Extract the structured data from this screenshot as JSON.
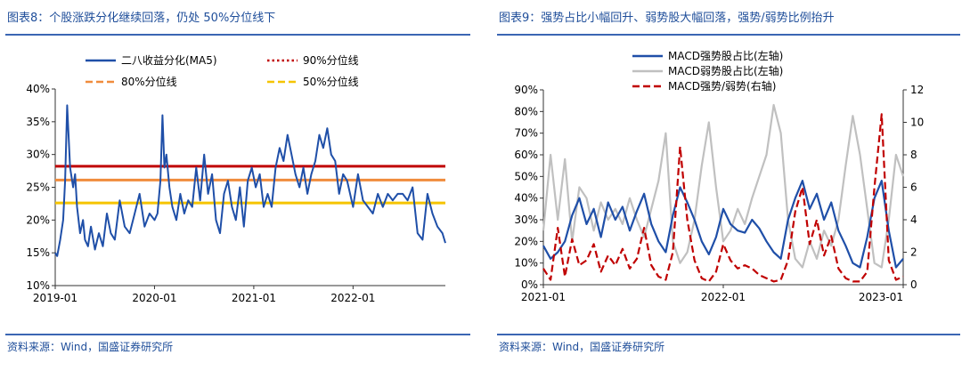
{
  "left": {
    "title": "图表8：个股涨跌分化继续回落，仍处 50%分位线下",
    "source": "资料来源：Wind，国盛证券研究所",
    "chart_data": {
      "type": "line",
      "title": "图表8：个股涨跌分化继续回落，仍处 50%分位线下",
      "yunit": "%",
      "ylim": [
        10,
        40
      ],
      "yticks": [
        "10%",
        "15%",
        "20%",
        "25%",
        "30%",
        "35%",
        "40%"
      ],
      "xlim": [
        2019.0,
        2022.93
      ],
      "xticks": [
        "2019-01",
        "2020-01",
        "2021-01",
        "2022-01"
      ],
      "legend_position": "top",
      "series": [
        {
          "name": "二八收益分化(MA5)",
          "color": "#1f4fa8",
          "style": "solid",
          "x": [
            2019.0,
            2019.02,
            2019.05,
            2019.08,
            2019.1,
            2019.12,
            2019.15,
            2019.18,
            2019.2,
            2019.22,
            2019.25,
            2019.28,
            2019.3,
            2019.33,
            2019.36,
            2019.4,
            2019.44,
            2019.48,
            2019.52,
            2019.56,
            2019.6,
            2019.65,
            2019.7,
            2019.75,
            2019.8,
            2019.85,
            2019.9,
            2019.95,
            2020.0,
            2020.03,
            2020.06,
            2020.08,
            2020.1,
            2020.12,
            2020.15,
            2020.18,
            2020.22,
            2020.26,
            2020.3,
            2020.34,
            2020.38,
            2020.42,
            2020.46,
            2020.5,
            2020.54,
            2020.58,
            2020.62,
            2020.66,
            2020.7,
            2020.74,
            2020.78,
            2020.82,
            2020.86,
            2020.9,
            2020.94,
            2020.98,
            2021.02,
            2021.06,
            2021.1,
            2021.14,
            2021.18,
            2021.22,
            2021.26,
            2021.3,
            2021.34,
            2021.38,
            2021.42,
            2021.46,
            2021.5,
            2021.54,
            2021.58,
            2021.62,
            2021.66,
            2021.7,
            2021.74,
            2021.78,
            2021.82,
            2021.86,
            2021.9,
            2021.94,
            2022.0,
            2022.05,
            2022.1,
            2022.15,
            2022.2,
            2022.25,
            2022.3,
            2022.35,
            2022.4,
            2022.45,
            2022.5,
            2022.55,
            2022.6,
            2022.65,
            2022.7,
            2022.75,
            2022.8,
            2022.85,
            2022.9,
            2022.93
          ],
          "y": [
            15,
            14.5,
            17,
            20,
            26,
            37.5,
            28,
            25,
            27,
            22,
            18,
            20,
            17,
            16,
            19,
            15.5,
            18,
            16,
            21,
            18,
            17,
            23,
            19,
            18,
            21,
            24,
            19,
            21,
            20,
            21,
            26,
            36,
            28,
            30,
            25,
            22,
            20,
            24,
            21,
            23,
            22,
            28,
            23,
            30,
            24,
            27,
            20,
            18,
            24,
            26,
            22,
            20,
            25,
            19,
            26,
            28,
            25,
            27,
            22,
            24,
            22,
            28,
            31,
            29,
            33,
            30,
            27,
            25,
            28,
            24,
            27,
            29,
            33,
            31,
            34,
            30,
            29,
            24,
            27,
            26,
            22,
            27,
            23,
            22,
            21,
            24,
            22,
            24,
            23,
            24,
            24,
            23,
            25,
            18,
            17,
            24,
            21,
            19,
            18,
            16.5
          ]
        },
        {
          "name": "90%分位线",
          "color": "#c00000",
          "style": "dotted",
          "y_const": 28.2
        },
        {
          "name": "80%分位线",
          "color": "#f08c3c",
          "style": "dashed",
          "y_const": 26.1
        },
        {
          "name": "50%分位线",
          "color": "#f5c400",
          "style": "dashed",
          "y_const": 22.6
        }
      ]
    }
  },
  "right": {
    "title": "图表9：强势占比小幅回升、弱势股大幅回落，强势/弱势比例抬升",
    "source": "资料来源：Wind，国盛证券研究所",
    "chart_data": {
      "type": "line",
      "title": "图表9：强势占比小幅回升、弱势股大幅回落，强势/弱势比例抬升",
      "yunit": "%",
      "ylim": [
        0,
        90
      ],
      "yticks": [
        "0%",
        "10%",
        "20%",
        "30%",
        "40%",
        "50%",
        "60%",
        "70%",
        "80%",
        "90%"
      ],
      "y2lim": [
        0,
        12
      ],
      "y2ticks": [
        "0",
        "2",
        "4",
        "6",
        "8",
        "10",
        "12"
      ],
      "xlim": [
        2021.0,
        2023.0
      ],
      "xticks": [
        "2021-01",
        "2022-01",
        "2023-01"
      ],
      "legend_position": "top",
      "series": [
        {
          "name": "MACD强势股占比(左轴)",
          "color": "#1f4fa8",
          "style": "solid",
          "axis": "left",
          "x": [
            2021.0,
            2021.04,
            2021.08,
            2021.12,
            2021.16,
            2021.2,
            2021.24,
            2021.28,
            2021.32,
            2021.36,
            2021.4,
            2021.44,
            2021.48,
            2021.52,
            2021.56,
            2021.6,
            2021.64,
            2021.68,
            2021.72,
            2021.76,
            2021.8,
            2021.84,
            2021.88,
            2021.92,
            2021.96,
            2022.0,
            2022.04,
            2022.08,
            2022.12,
            2022.16,
            2022.2,
            2022.24,
            2022.28,
            2022.32,
            2022.36,
            2022.4,
            2022.44,
            2022.48,
            2022.52,
            2022.56,
            2022.6,
            2022.64,
            2022.68,
            2022.72,
            2022.76,
            2022.8,
            2022.84,
            2022.88,
            2022.92,
            2022.96,
            2023.0
          ],
          "y": [
            18,
            12,
            15,
            20,
            32,
            40,
            28,
            35,
            22,
            38,
            30,
            36,
            25,
            34,
            42,
            28,
            20,
            15,
            32,
            45,
            38,
            30,
            20,
            14,
            22,
            35,
            28,
            25,
            24,
            30,
            26,
            20,
            15,
            12,
            30,
            40,
            48,
            35,
            42,
            30,
            38,
            25,
            18,
            10,
            8,
            22,
            40,
            48,
            25,
            8,
            12
          ]
        },
        {
          "name": "MACD弱势股占比(左轴)",
          "color": "#c0c0c0",
          "style": "solid",
          "axis": "left",
          "x": [
            2021.0,
            2021.04,
            2021.08,
            2021.12,
            2021.16,
            2021.2,
            2021.24,
            2021.28,
            2021.32,
            2021.36,
            2021.4,
            2021.44,
            2021.48,
            2021.52,
            2021.56,
            2021.6,
            2021.64,
            2021.68,
            2021.72,
            2021.76,
            2021.8,
            2021.84,
            2021.88,
            2021.92,
            2021.96,
            2022.0,
            2022.04,
            2022.08,
            2022.12,
            2022.16,
            2022.2,
            2022.24,
            2022.28,
            2022.32,
            2022.36,
            2022.4,
            2022.44,
            2022.48,
            2022.52,
            2022.56,
            2022.6,
            2022.64,
            2022.68,
            2022.72,
            2022.76,
            2022.8,
            2022.84,
            2022.88,
            2022.92,
            2022.96,
            2023.0
          ],
          "y": [
            25,
            60,
            30,
            58,
            20,
            45,
            40,
            25,
            38,
            30,
            35,
            28,
            40,
            30,
            22,
            35,
            48,
            70,
            20,
            10,
            15,
            30,
            55,
            75,
            45,
            20,
            25,
            35,
            28,
            40,
            50,
            60,
            83,
            70,
            30,
            12,
            8,
            20,
            12,
            25,
            18,
            30,
            55,
            78,
            60,
            35,
            10,
            8,
            30,
            60,
            50
          ]
        },
        {
          "name": "MACD强势/弱势(右轴)",
          "color": "#c00000",
          "style": "dashed",
          "axis": "right",
          "x": [
            2021.0,
            2021.04,
            2021.08,
            2021.12,
            2021.16,
            2021.2,
            2021.24,
            2021.28,
            2021.32,
            2021.36,
            2021.4,
            2021.44,
            2021.48,
            2021.52,
            2021.56,
            2021.6,
            2021.64,
            2021.68,
            2021.72,
            2021.76,
            2021.8,
            2021.84,
            2021.88,
            2021.92,
            2021.96,
            2022.0,
            2022.04,
            2022.08,
            2022.12,
            2022.16,
            2022.2,
            2022.24,
            2022.28,
            2022.32,
            2022.36,
            2022.4,
            2022.44,
            2022.48,
            2022.52,
            2022.56,
            2022.6,
            2022.64,
            2022.68,
            2022.72,
            2022.76,
            2022.8,
            2022.84,
            2022.88,
            2022.92,
            2022.96,
            2023.0
          ],
          "y": [
            1,
            0.3,
            3.5,
            0.5,
            2.8,
            1.2,
            1.5,
            2.5,
            0.8,
            1.8,
            1.2,
            2.2,
            1,
            1.6,
            3.5,
            1.2,
            0.5,
            0.3,
            2,
            8.5,
            4,
            1.5,
            0.4,
            0.2,
            0.8,
            2.5,
            1.5,
            1,
            1.2,
            1.0,
            0.6,
            0.4,
            0.2,
            0.3,
            1.5,
            4.5,
            6,
            2.5,
            4,
            1.8,
            3,
            1,
            0.4,
            0.2,
            0.2,
            0.8,
            6,
            10.5,
            1.5,
            0.3,
            0.5
          ]
        }
      ]
    }
  }
}
